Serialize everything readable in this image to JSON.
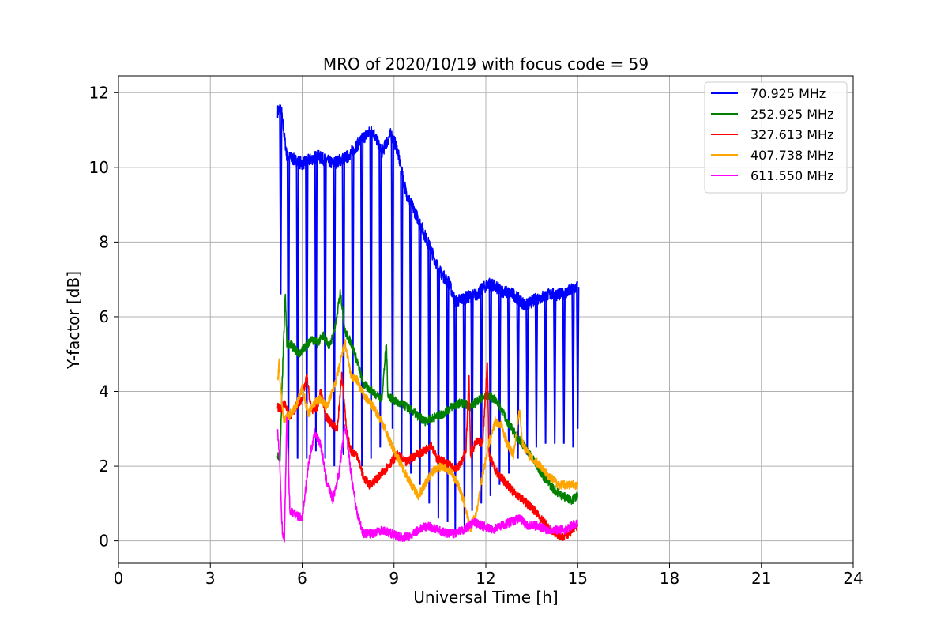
{
  "chart_data": {
    "type": "line",
    "title": "MRO of 2020/10/19 with focus code = 59",
    "xlabel": "Universal Time [h]",
    "ylabel": "Y-factor [dB]",
    "xlim": [
      0,
      24
    ],
    "ylim": [
      -0.6,
      12.45
    ],
    "xticks": [
      0,
      3,
      6,
      9,
      12,
      15,
      18,
      21,
      24
    ],
    "yticks": [
      0,
      2,
      4,
      6,
      8,
      10,
      12
    ],
    "grid": true,
    "legend_position": "upper right",
    "series": [
      {
        "name": "70.925 MHz",
        "legend_label": "  70.925 MHz",
        "color": "#0000ff",
        "baseline": [
          [
            5.2,
            11.5
          ],
          [
            5.3,
            11.6
          ],
          [
            5.5,
            10.3
          ],
          [
            6.0,
            10.1
          ],
          [
            6.5,
            10.3
          ],
          [
            7.0,
            10.1
          ],
          [
            7.5,
            10.3
          ],
          [
            8.0,
            10.8
          ],
          [
            8.3,
            11.0
          ],
          [
            8.6,
            10.4
          ],
          [
            8.9,
            10.9
          ],
          [
            9.1,
            10.5
          ],
          [
            9.4,
            9.3
          ],
          [
            9.8,
            8.6
          ],
          [
            10.2,
            7.8
          ],
          [
            10.5,
            7.2
          ],
          [
            10.8,
            6.9
          ],
          [
            11.0,
            6.4
          ],
          [
            11.3,
            6.5
          ],
          [
            11.7,
            6.6
          ],
          [
            12.1,
            6.9
          ],
          [
            12.5,
            6.7
          ],
          [
            12.9,
            6.6
          ],
          [
            13.3,
            6.3
          ],
          [
            13.7,
            6.5
          ],
          [
            14.1,
            6.6
          ],
          [
            14.5,
            6.6
          ],
          [
            15.0,
            6.8
          ]
        ],
        "dips": [
          [
            5.3,
            6.6
          ],
          [
            5.55,
            2.0
          ],
          [
            5.85,
            2.2
          ],
          [
            6.15,
            2.2
          ],
          [
            6.45,
            2.4
          ],
          [
            6.75,
            2.2
          ],
          [
            7.05,
            2.0
          ],
          [
            7.35,
            2.3
          ],
          [
            7.65,
            2.3
          ],
          [
            7.95,
            2.0
          ],
          [
            8.25,
            2.2
          ],
          [
            8.55,
            2.5
          ],
          [
            8.95,
            3.0
          ],
          [
            9.25,
            2.2
          ],
          [
            9.55,
            1.8
          ],
          [
            9.85,
            1.5
          ],
          [
            10.15,
            1.0
          ],
          [
            10.45,
            0.6
          ],
          [
            10.75,
            0.5
          ],
          [
            11.0,
            0.2
          ],
          [
            11.3,
            0.2
          ],
          [
            11.55,
            0.8
          ],
          [
            11.85,
            1.0
          ],
          [
            12.15,
            1.2
          ],
          [
            12.45,
            1.5
          ],
          [
            12.75,
            1.8
          ],
          [
            13.05,
            2.2
          ],
          [
            13.35,
            2.3
          ],
          [
            13.65,
            2.5
          ],
          [
            13.95,
            2.6
          ],
          [
            14.25,
            2.6
          ],
          [
            14.55,
            2.6
          ],
          [
            14.85,
            2.5
          ],
          [
            15.0,
            3.0
          ]
        ]
      },
      {
        "name": "252.925 MHz",
        "legend_label": "252.925 MHz",
        "color": "#008000",
        "points": [
          [
            5.2,
            2.3
          ],
          [
            5.28,
            2.2
          ],
          [
            5.35,
            4.3
          ],
          [
            5.45,
            6.6
          ],
          [
            5.5,
            5.3
          ],
          [
            5.7,
            5.2
          ],
          [
            5.9,
            5.0
          ],
          [
            6.1,
            5.2
          ],
          [
            6.3,
            5.4
          ],
          [
            6.5,
            5.3
          ],
          [
            6.7,
            5.5
          ],
          [
            6.9,
            5.2
          ],
          [
            7.1,
            5.8
          ],
          [
            7.25,
            6.7
          ],
          [
            7.4,
            5.6
          ],
          [
            7.6,
            5.3
          ],
          [
            7.8,
            4.8
          ],
          [
            8.0,
            4.2
          ],
          [
            8.3,
            4.0
          ],
          [
            8.6,
            3.8
          ],
          [
            8.75,
            5.3
          ],
          [
            8.8,
            3.9
          ],
          [
            9.1,
            3.7
          ],
          [
            9.4,
            3.6
          ],
          [
            9.7,
            3.4
          ],
          [
            10.0,
            3.2
          ],
          [
            10.3,
            3.3
          ],
          [
            10.6,
            3.4
          ],
          [
            10.9,
            3.6
          ],
          [
            11.2,
            3.7
          ],
          [
            11.5,
            3.6
          ],
          [
            11.8,
            3.8
          ],
          [
            12.1,
            3.9
          ],
          [
            12.4,
            3.7
          ],
          [
            12.7,
            3.2
          ],
          [
            13.0,
            2.8
          ],
          [
            13.3,
            2.5
          ],
          [
            13.6,
            2.1
          ],
          [
            13.9,
            1.7
          ],
          [
            14.2,
            1.4
          ],
          [
            14.5,
            1.2
          ],
          [
            14.8,
            1.1
          ],
          [
            15.0,
            1.2
          ]
        ]
      },
      {
        "name": "327.613 MHz",
        "legend_label": "327.613 MHz",
        "color": "#ff0000",
        "points": [
          [
            5.2,
            3.6
          ],
          [
            5.3,
            3.5
          ],
          [
            5.45,
            3.7
          ],
          [
            5.6,
            3.3
          ],
          [
            5.8,
            3.6
          ],
          [
            6.0,
            3.8
          ],
          [
            6.15,
            4.4
          ],
          [
            6.3,
            3.5
          ],
          [
            6.5,
            3.6
          ],
          [
            6.6,
            4.0
          ],
          [
            6.8,
            3.3
          ],
          [
            7.0,
            3.1
          ],
          [
            7.15,
            3.0
          ],
          [
            7.3,
            4.5
          ],
          [
            7.45,
            2.9
          ],
          [
            7.6,
            2.4
          ],
          [
            7.8,
            2.3
          ],
          [
            8.0,
            1.7
          ],
          [
            8.2,
            1.5
          ],
          [
            8.5,
            1.7
          ],
          [
            8.8,
            2.0
          ],
          [
            9.1,
            2.3
          ],
          [
            9.4,
            2.1
          ],
          [
            9.7,
            2.3
          ],
          [
            10.0,
            2.4
          ],
          [
            10.2,
            2.6
          ],
          [
            10.4,
            2.2
          ],
          [
            10.7,
            2.1
          ],
          [
            11.0,
            1.9
          ],
          [
            11.2,
            2.1
          ],
          [
            11.35,
            2.4
          ],
          [
            11.45,
            4.5
          ],
          [
            11.5,
            2.3
          ],
          [
            11.7,
            2.7
          ],
          [
            11.9,
            2.6
          ],
          [
            12.05,
            4.9
          ],
          [
            12.1,
            2.3
          ],
          [
            12.3,
            1.9
          ],
          [
            12.6,
            1.6
          ],
          [
            12.9,
            1.3
          ],
          [
            13.2,
            1.1
          ],
          [
            13.5,
            0.9
          ],
          [
            13.8,
            0.6
          ],
          [
            14.1,
            0.3
          ],
          [
            14.3,
            0.2
          ],
          [
            14.5,
            0.1
          ],
          [
            14.7,
            0.2
          ],
          [
            15.0,
            0.4
          ]
        ]
      },
      {
        "name": "407.738 MHz",
        "legend_label": "407.738 MHz",
        "color": "#ffa500",
        "points": [
          [
            5.2,
            4.3
          ],
          [
            5.25,
            4.8
          ],
          [
            5.3,
            4.0
          ],
          [
            5.4,
            3.2
          ],
          [
            5.6,
            3.4
          ],
          [
            5.8,
            3.6
          ],
          [
            6.0,
            4.1
          ],
          [
            6.2,
            3.4
          ],
          [
            6.4,
            3.7
          ],
          [
            6.6,
            3.8
          ],
          [
            6.8,
            3.6
          ],
          [
            7.0,
            4.0
          ],
          [
            7.2,
            4.6
          ],
          [
            7.4,
            5.3
          ],
          [
            7.6,
            4.4
          ],
          [
            7.8,
            4.3
          ],
          [
            8.0,
            3.9
          ],
          [
            8.3,
            3.6
          ],
          [
            8.6,
            3.2
          ],
          [
            8.9,
            2.6
          ],
          [
            9.2,
            2.1
          ],
          [
            9.5,
            1.6
          ],
          [
            9.8,
            1.2
          ],
          [
            10.0,
            1.5
          ],
          [
            10.3,
            1.9
          ],
          [
            10.6,
            2.0
          ],
          [
            10.9,
            1.8
          ],
          [
            11.1,
            1.5
          ],
          [
            11.3,
            1.0
          ],
          [
            11.5,
            0.3
          ],
          [
            11.7,
            0.8
          ],
          [
            11.9,
            1.8
          ],
          [
            12.1,
            2.6
          ],
          [
            12.3,
            3.2
          ],
          [
            12.5,
            3.1
          ],
          [
            12.7,
            2.6
          ],
          [
            12.9,
            2.3
          ],
          [
            13.1,
            3.5
          ],
          [
            13.2,
            2.6
          ],
          [
            13.5,
            2.2
          ],
          [
            13.8,
            2.0
          ],
          [
            14.1,
            1.7
          ],
          [
            14.4,
            1.5
          ],
          [
            14.7,
            1.5
          ],
          [
            15.0,
            1.5
          ]
        ]
      },
      {
        "name": "611.550 MHz",
        "legend_label": "611.550 MHz",
        "color": "#ff00ff",
        "points": [
          [
            5.2,
            2.9
          ],
          [
            5.25,
            2.4
          ],
          [
            5.35,
            0.3
          ],
          [
            5.42,
            0.0
          ],
          [
            5.5,
            3.3
          ],
          [
            5.6,
            0.8
          ],
          [
            5.8,
            0.7
          ],
          [
            6.0,
            0.6
          ],
          [
            6.2,
            2.0
          ],
          [
            6.4,
            2.9
          ],
          [
            6.6,
            2.6
          ],
          [
            6.8,
            1.6
          ],
          [
            7.0,
            1.1
          ],
          [
            7.2,
            1.8
          ],
          [
            7.4,
            3.1
          ],
          [
            7.6,
            1.8
          ],
          [
            7.8,
            0.7
          ],
          [
            8.0,
            0.2
          ],
          [
            8.3,
            0.2
          ],
          [
            8.6,
            0.3
          ],
          [
            8.9,
            0.2
          ],
          [
            9.2,
            0.1
          ],
          [
            9.5,
            0.1
          ],
          [
            9.8,
            0.3
          ],
          [
            10.1,
            0.4
          ],
          [
            10.4,
            0.3
          ],
          [
            10.7,
            0.2
          ],
          [
            11.0,
            0.2
          ],
          [
            11.3,
            0.3
          ],
          [
            11.6,
            0.5
          ],
          [
            11.9,
            0.4
          ],
          [
            12.2,
            0.3
          ],
          [
            12.5,
            0.4
          ],
          [
            12.8,
            0.5
          ],
          [
            13.1,
            0.6
          ],
          [
            13.4,
            0.4
          ],
          [
            13.7,
            0.4
          ],
          [
            14.0,
            0.3
          ],
          [
            14.3,
            0.3
          ],
          [
            14.6,
            0.3
          ],
          [
            15.0,
            0.5
          ]
        ]
      }
    ]
  }
}
